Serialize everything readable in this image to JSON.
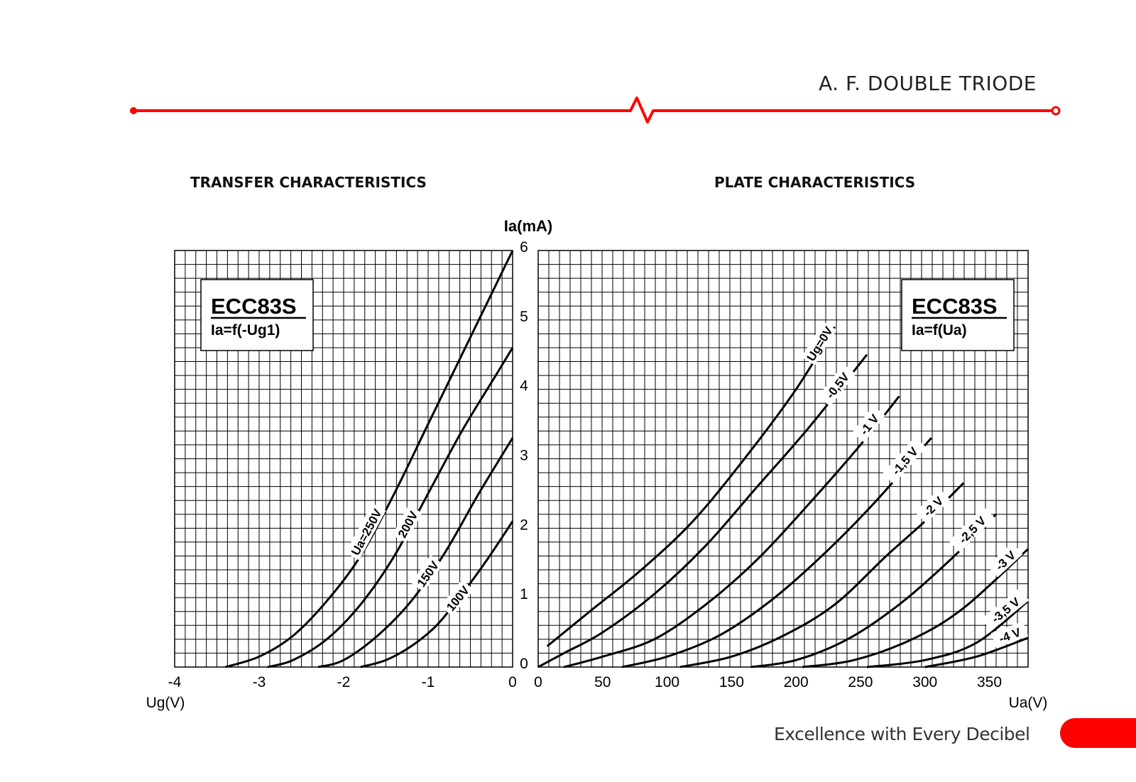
{
  "header": {
    "title": "A. F. DOUBLE TRIODE",
    "accent_color": "#ff0000"
  },
  "footer": {
    "slogan": "Excellence with Every Decibel"
  },
  "chart_data": [
    {
      "type": "line",
      "title": "TRANSFER CHARACTERISTICS",
      "box_title": "ECC83S",
      "box_subtitle": "Ia=f(-Ug1)",
      "xlabel": "Ug(V)",
      "ylabel": "Ia(mA)",
      "xlim": [
        -4,
        0
      ],
      "ylim": [
        0,
        6
      ],
      "xticks": [
        "-4",
        "-3",
        "-2",
        "-1",
        "0"
      ],
      "yticks": [
        "0",
        "1",
        "2",
        "3",
        "4",
        "5",
        "6"
      ],
      "grid": true,
      "series": [
        {
          "name": "Ua=250V",
          "points": [
            [
              -3.4,
              0
            ],
            [
              -3.0,
              0.15
            ],
            [
              -2.6,
              0.45
            ],
            [
              -2.2,
              0.95
            ],
            [
              -1.8,
              1.6
            ],
            [
              -1.4,
              2.5
            ],
            [
              -1.0,
              3.5
            ],
            [
              -0.6,
              4.5
            ],
            [
              -0.2,
              5.5
            ],
            [
              0.0,
              6.0
            ]
          ]
        },
        {
          "name": "200V",
          "points": [
            [
              -2.9,
              0
            ],
            [
              -2.6,
              0.1
            ],
            [
              -2.2,
              0.4
            ],
            [
              -1.8,
              0.9
            ],
            [
              -1.4,
              1.6
            ],
            [
              -1.0,
              2.5
            ],
            [
              -0.6,
              3.4
            ],
            [
              -0.2,
              4.2
            ],
            [
              0.0,
              4.6
            ]
          ]
        },
        {
          "name": "150V",
          "points": [
            [
              -2.3,
              0
            ],
            [
              -2.0,
              0.1
            ],
            [
              -1.6,
              0.45
            ],
            [
              -1.2,
              0.95
            ],
            [
              -0.8,
              1.65
            ],
            [
              -0.4,
              2.5
            ],
            [
              0.0,
              3.3
            ]
          ]
        },
        {
          "name": "100V",
          "points": [
            [
              -1.8,
              0
            ],
            [
              -1.5,
              0.1
            ],
            [
              -1.2,
              0.3
            ],
            [
              -0.9,
              0.6
            ],
            [
              -0.6,
              1.05
            ],
            [
              -0.3,
              1.55
            ],
            [
              0.0,
              2.1
            ]
          ]
        }
      ]
    },
    {
      "type": "line",
      "title": "PLATE CHARACTERISTICS",
      "box_title": "ECC83S",
      "box_subtitle": "Ia=f(Ua)",
      "xlabel": "Ua(V)",
      "ylabel": "Ia(mA)",
      "xlim": [
        0,
        380
      ],
      "ylim": [
        0,
        6
      ],
      "xticks": [
        "0",
        "50",
        "100",
        "150",
        "200",
        "250",
        "300",
        "350"
      ],
      "yticks": [
        "0",
        "1",
        "2",
        "3",
        "4",
        "5",
        "6"
      ],
      "grid": true,
      "series": [
        {
          "name": "Ug=0V",
          "points": [
            [
              7,
              0.3
            ],
            [
              40,
              0.8
            ],
            [
              80,
              1.4
            ],
            [
              120,
              2.1
            ],
            [
              160,
              3.0
            ],
            [
              200,
              4.0
            ],
            [
              230,
              4.9
            ]
          ]
        },
        {
          "name": "-0,5V",
          "points": [
            [
              0,
              0
            ],
            [
              20,
              0.2
            ],
            [
              50,
              0.5
            ],
            [
              90,
              1.05
            ],
            [
              130,
              1.75
            ],
            [
              170,
              2.6
            ],
            [
              210,
              3.45
            ],
            [
              255,
              4.5
            ]
          ]
        },
        {
          "name": "-1 V",
          "points": [
            [
              20,
              0
            ],
            [
              50,
              0.15
            ],
            [
              90,
              0.4
            ],
            [
              130,
              0.9
            ],
            [
              170,
              1.55
            ],
            [
              210,
              2.35
            ],
            [
              250,
              3.2
            ],
            [
              280,
              3.9
            ]
          ]
        },
        {
          "name": "-1,5 V",
          "points": [
            [
              65,
              0
            ],
            [
              100,
              0.15
            ],
            [
              140,
              0.45
            ],
            [
              180,
              0.95
            ],
            [
              220,
              1.6
            ],
            [
              260,
              2.35
            ],
            [
              305,
              3.3
            ]
          ]
        },
        {
          "name": "-2 V",
          "points": [
            [
              110,
              0
            ],
            [
              150,
              0.15
            ],
            [
              190,
              0.45
            ],
            [
              230,
              0.9
            ],
            [
              270,
              1.6
            ],
            [
              300,
              2.1
            ],
            [
              330,
              2.65
            ]
          ]
        },
        {
          "name": "-2,5 V",
          "points": [
            [
              165,
              0
            ],
            [
              200,
              0.1
            ],
            [
              240,
              0.4
            ],
            [
              280,
              0.9
            ],
            [
              320,
              1.55
            ],
            [
              355,
              2.2
            ]
          ]
        },
        {
          "name": "-3 V",
          "points": [
            [
              205,
              0
            ],
            [
              245,
              0.1
            ],
            [
              290,
              0.4
            ],
            [
              330,
              0.85
            ],
            [
              380,
              1.7
            ]
          ]
        },
        {
          "name": "-3,5 V",
          "points": [
            [
              255,
              0
            ],
            [
              300,
              0.1
            ],
            [
              340,
              0.35
            ],
            [
              380,
              0.95
            ]
          ]
        },
        {
          "name": "-4 V",
          "points": [
            [
              300,
              0
            ],
            [
              340,
              0.15
            ],
            [
              380,
              0.42
            ]
          ]
        }
      ]
    }
  ]
}
